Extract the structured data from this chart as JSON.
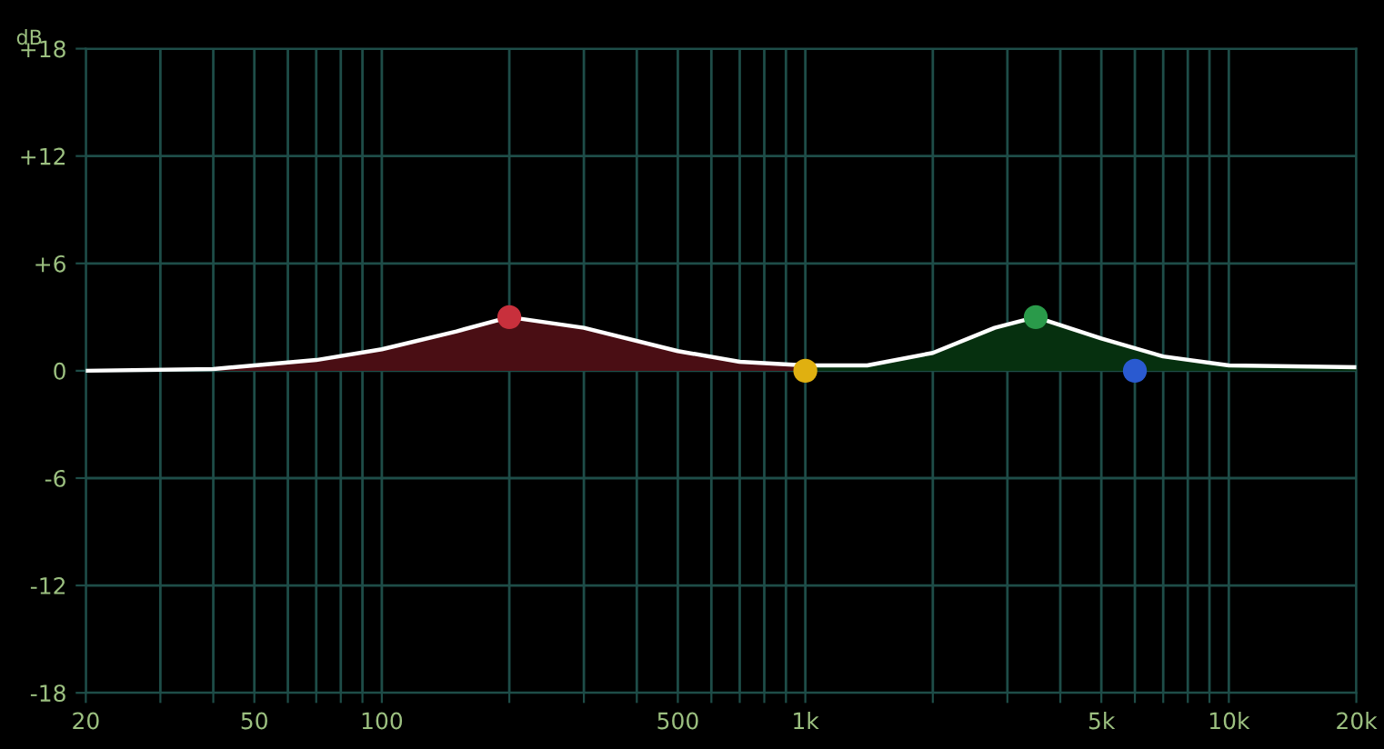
{
  "chart_data": {
    "type": "line",
    "ylabel": "dB",
    "log": "x",
    "grid": true,
    "xlim": [
      20,
      20000
    ],
    "ylim": [
      -18,
      18
    ],
    "xticks": [
      20,
      {
        "value": 30,
        "label": null
      },
      {
        "value": 40,
        "label": null
      },
      50,
      {
        "value": 60,
        "label": null
      },
      {
        "value": 70,
        "label": null
      },
      {
        "value": 80,
        "label": null
      },
      {
        "value": 90,
        "label": null
      },
      100,
      {
        "value": 200,
        "label": null
      },
      {
        "value": 300,
        "label": null
      },
      {
        "value": 400,
        "label": null
      },
      500,
      {
        "value": 600,
        "label": null
      },
      {
        "value": 700,
        "label": null
      },
      {
        "value": 800,
        "label": null
      },
      {
        "value": 900,
        "label": null
      },
      {
        "value": 1000,
        "label": "1k"
      },
      {
        "value": 2000,
        "label": null
      },
      {
        "value": 3000,
        "label": null
      },
      {
        "value": 4000,
        "label": null
      },
      {
        "value": 5000,
        "label": "5k"
      },
      {
        "value": 6000,
        "label": null
      },
      {
        "value": 7000,
        "label": null
      },
      {
        "value": 8000,
        "label": null
      },
      {
        "value": 9000,
        "label": null
      },
      {
        "value": 10000,
        "label": "10k"
      },
      {
        "value": 20000,
        "label": "20k"
      }
    ],
    "yticks": [
      {
        "value": 18,
        "label": "+18"
      },
      {
        "value": 12,
        "label": "+12"
      },
      {
        "value": 6,
        "label": "+6"
      },
      0,
      {
        "value": -6,
        "label": "-6"
      },
      {
        "value": -12,
        "label": "-12"
      },
      {
        "value": -18,
        "label": "-18"
      }
    ],
    "series": [
      {
        "type": "area",
        "color": "#4a0e14",
        "x": [
          20,
          40,
          50,
          70,
          100,
          150,
          200,
          300,
          500,
          700,
          1000
        ],
        "values": [
          0,
          0.1,
          0.3,
          0.6,
          1.2,
          2.2,
          3.0,
          2.4,
          1.1,
          0.5,
          0.3
        ]
      },
      {
        "type": "area",
        "color": "#06300f",
        "x": [
          1000,
          1400,
          2000,
          2800,
          3500,
          5000,
          7000,
          10000,
          20000
        ],
        "values": [
          0.3,
          0.3,
          1.0,
          2.4,
          3.0,
          1.8,
          0.8,
          0.3,
          0.2
        ]
      },
      {
        "color": "#ffffff",
        "x": [
          20,
          40,
          50,
          70,
          100,
          150,
          200,
          300,
          500,
          700,
          1000,
          1400,
          2000,
          2800,
          3500,
          5000,
          7000,
          10000,
          20000
        ],
        "values": [
          0,
          0.1,
          0.3,
          0.6,
          1.2,
          2.2,
          3.0,
          2.4,
          1.1,
          0.5,
          0.3,
          0.3,
          1.0,
          2.4,
          3.0,
          1.8,
          0.8,
          0.3,
          0.2
        ]
      },
      {
        "type": "scatter",
        "marker": "circle",
        "x": [
          200,
          1000,
          3500,
          6000
        ],
        "values": [
          3.0,
          0,
          3.0,
          0
        ],
        "colors": [
          "#c8303c",
          "#e0b010",
          "#2a9a4a",
          "#2a5ad0"
        ]
      }
    ]
  }
}
